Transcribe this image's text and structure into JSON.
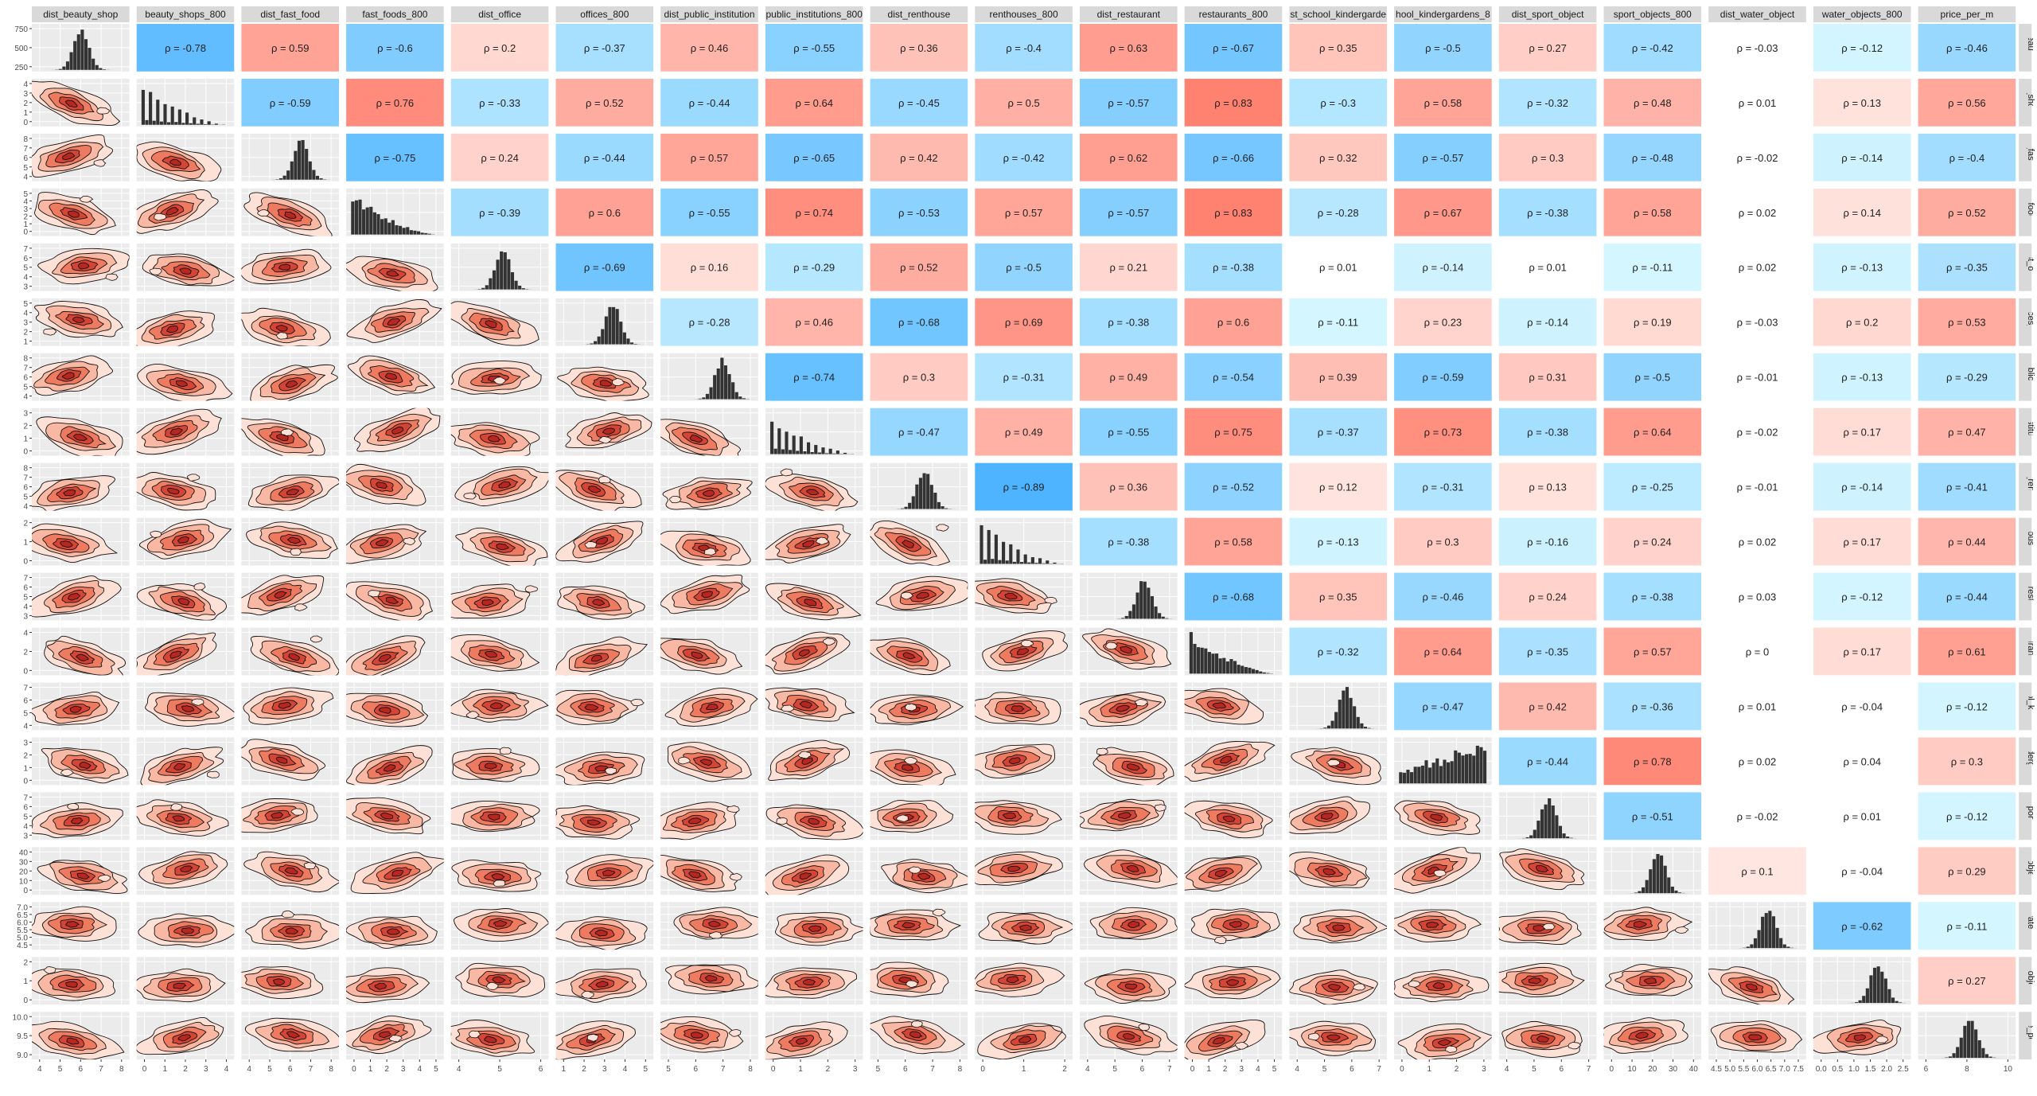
{
  "chart_data": {
    "type": "scatter-matrix",
    "variables": [
      "dist_beauty_shop",
      "beauty_shops_800",
      "dist_fast_food",
      "fast_foods_800",
      "dist_office",
      "offices_800",
      "dist_public_institution",
      "public_institutions_800",
      "dist_renthouse",
      "renthouses_800",
      "dist_restaurant",
      "restaurants_800",
      "dist_school_kindergarden",
      "school_kindergardens_800",
      "dist_sport_object",
      "sport_objects_800",
      "dist_water_object",
      "water_objects_800",
      "price_per_m"
    ],
    "column_labels": [
      "dist_beauty_shop",
      "beauty_shops_800",
      "dist_fast_food",
      "fast_foods_800",
      "dist_office",
      "offices_800",
      "dist_public_institution",
      "public_institutions_800",
      "dist_renthouse",
      "renthouses_800",
      "dist_restaurant",
      "restaurants_800",
      "st_school_kindergarde",
      "hool_kindergardens_8",
      "dist_sport_object",
      "sport_objects_800",
      "dist_water_object",
      "water_objects_800",
      "price_per_m"
    ],
    "row_labels": [
      "t_beauty_sh",
      "ty_shops_",
      "ist_fast_foo",
      "st_foods_8",
      "dist_office",
      "offices_800",
      "_public_insti",
      "institution",
      "ist_renthou",
      "nthouses_8",
      "st_restaura",
      "taurants_8",
      "hool_kinder",
      "kindergarde",
      "t_sport_obj",
      "rt_objects_",
      "t_water_obj",
      "er_objects_",
      "rice_per_m"
    ],
    "correlation_format": "ρ = {v}",
    "correlations": [
      [
        -0.78,
        0.59,
        -0.6,
        0.2,
        -0.37,
        0.46,
        -0.55,
        0.36,
        -0.4,
        0.63,
        -0.67,
        0.35,
        -0.5,
        0.27,
        -0.42,
        -0.03,
        -0.12,
        -0.46
      ],
      [
        -0.59,
        0.76,
        -0.33,
        0.52,
        -0.44,
        0.64,
        -0.45,
        0.5,
        -0.57,
        0.83,
        -0.3,
        0.58,
        -0.32,
        0.48,
        0.01,
        0.13,
        0.56
      ],
      [
        -0.75,
        0.24,
        -0.44,
        0.57,
        -0.65,
        0.42,
        -0.42,
        0.62,
        -0.66,
        0.32,
        -0.57,
        0.3,
        -0.48,
        -0.02,
        -0.14,
        -0.4
      ],
      [
        -0.39,
        0.6,
        -0.55,
        0.74,
        -0.53,
        0.57,
        -0.57,
        0.83,
        -0.28,
        0.67,
        -0.38,
        0.58,
        0.02,
        0.14,
        0.52
      ],
      [
        -0.69,
        0.16,
        -0.29,
        0.52,
        -0.5,
        0.21,
        -0.38,
        0.01,
        -0.14,
        0.01,
        -0.11,
        0.02,
        -0.13,
        -0.35
      ],
      [
        -0.28,
        0.46,
        -0.68,
        0.69,
        -0.38,
        0.6,
        -0.11,
        0.23,
        -0.14,
        0.19,
        -0.03,
        0.2,
        0.53
      ],
      [
        -0.74,
        0.3,
        -0.31,
        0.49,
        -0.54,
        0.39,
        -0.59,
        0.31,
        -0.5,
        -0.01,
        -0.13,
        -0.29
      ],
      [
        -0.47,
        0.49,
        -0.55,
        0.75,
        -0.37,
        0.73,
        -0.38,
        0.64,
        -0.02,
        0.17,
        0.47
      ],
      [
        -0.89,
        0.36,
        -0.52,
        0.12,
        -0.31,
        0.13,
        -0.25,
        -0.01,
        -0.14,
        -0.41
      ],
      [
        -0.38,
        0.58,
        -0.13,
        0.3,
        -0.16,
        0.24,
        0.02,
        0.17,
        0.44
      ],
      [
        -0.68,
        0.35,
        -0.46,
        0.24,
        -0.38,
        0.03,
        -0.12,
        -0.44
      ],
      [
        -0.32,
        0.64,
        -0.35,
        0.57,
        0,
        0.17,
        0.61
      ],
      [
        -0.47,
        0.42,
        -0.36,
        0.01,
        -0.04,
        -0.12
      ],
      [
        -0.44,
        0.78,
        0.02,
        0.04,
        0.3
      ],
      [
        -0.51,
        -0.02,
        0.01,
        -0.12
      ],
      [
        0.1,
        -0.04,
        0.29
      ],
      [
        -0.62,
        -0.11
      ],
      [
        0.27
      ]
    ],
    "x_ticks": [
      [
        "4",
        "5",
        "6",
        "7",
        "8"
      ],
      [
        "0",
        "1",
        "2",
        "3",
        "4"
      ],
      [
        "4",
        "5",
        "6",
        "7",
        "8"
      ],
      [
        "0",
        "1",
        "2",
        "3",
        "4",
        "5"
      ],
      [
        "4",
        "5",
        "6"
      ],
      [
        "1",
        "2",
        "3",
        "4",
        "5"
      ],
      [
        "5",
        "6",
        "7",
        "8"
      ],
      [
        "0",
        "1",
        "2",
        "3"
      ],
      [
        "5",
        "6",
        "7",
        "8"
      ],
      [
        "0",
        "1",
        "2"
      ],
      [
        "4",
        "5",
        "6",
        "7"
      ],
      [
        "0",
        "1",
        "2",
        "3",
        "4",
        "5"
      ],
      [
        "4",
        "5",
        "6",
        "7"
      ],
      [
        "0",
        "1",
        "2",
        "3"
      ],
      [
        "4",
        "5",
        "6",
        "7"
      ],
      [
        "0",
        "10",
        "20",
        "30",
        "40"
      ],
      [
        "4.5",
        "5.0",
        "5.5",
        "6.0",
        "6.5",
        "7.0",
        "7.5"
      ],
      [
        "0.0",
        "0.5",
        "1.0",
        "1.5",
        "2.0",
        "2.5"
      ],
      [
        "6",
        "8",
        "10"
      ]
    ],
    "y_ticks": [
      [
        "250",
        "500",
        "750"
      ],
      [
        "0",
        "1",
        "2",
        "3",
        "4"
      ],
      [
        "4",
        "5",
        "6",
        "7",
        "8"
      ],
      [
        "0",
        "1",
        "2",
        "3",
        "4",
        "5"
      ],
      [
        "3",
        "4",
        "5",
        "6",
        "7"
      ],
      [
        "1",
        "2",
        "3",
        "4",
        "5"
      ],
      [
        "4",
        "5",
        "6",
        "7",
        "8"
      ],
      [
        "0",
        "1",
        "2",
        "3"
      ],
      [
        "4",
        "5",
        "6",
        "7",
        "8"
      ],
      [
        "0",
        "1",
        "2"
      ],
      [
        "3",
        "4",
        "5",
        "6",
        "7"
      ],
      [
        "0",
        "2",
        "4"
      ],
      [
        "4",
        "5",
        "6",
        "7"
      ],
      [
        "0",
        "1",
        "2",
        "3"
      ],
      [
        "3",
        "4",
        "5",
        "6",
        "7"
      ],
      [
        "0",
        "10",
        "20",
        "30",
        "40"
      ],
      [
        "4.5",
        "5.0",
        "5.5",
        "6.0",
        "6.5",
        "7.0"
      ],
      [
        "0",
        "1",
        "2"
      ],
      [
        "9.0",
        "9.5",
        "10.0"
      ]
    ],
    "diagonal": "histogram",
    "lower_panels": "2d-density-contours",
    "upper_panels": "correlation-tiles",
    "colors": {
      "positive": "#ff7f6e",
      "negative": "#4db3ff",
      "neutral": "#ffffff",
      "density_high": "#b8271f",
      "density_low": "#fde0d6",
      "panel_bg": "#ebebeb",
      "strip_bg": "#d9d9d9",
      "grid": "#ffffff",
      "bars": "#333333"
    }
  }
}
